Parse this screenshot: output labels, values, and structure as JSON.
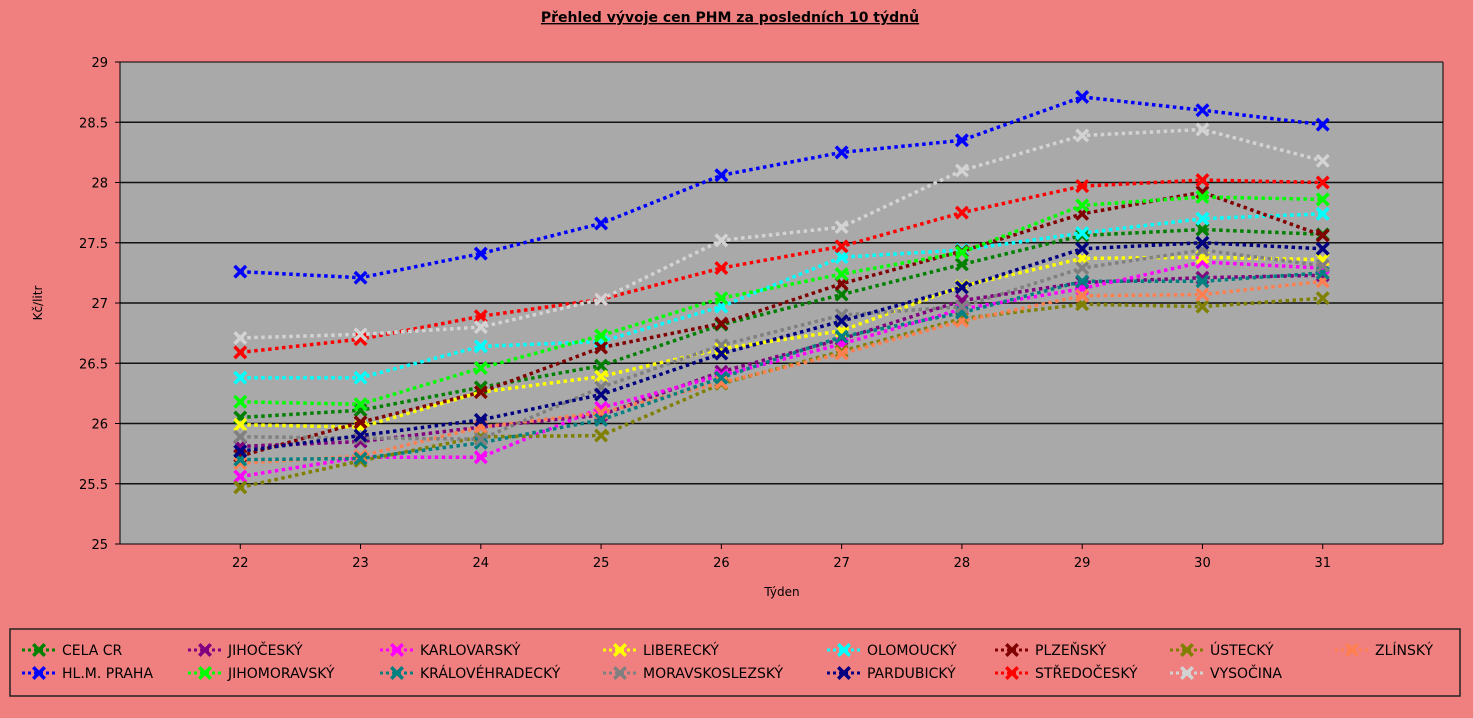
{
  "chart_data": {
    "type": "line",
    "title": "Přehled vývoje cen PHM za posledních 10 týdnů",
    "xlabel": "Týden",
    "ylabel": "Kč/litr",
    "ylim": [
      25,
      29
    ],
    "yticks": [
      "25",
      "25.5",
      "26",
      "26.5",
      "27",
      "27.5",
      "28",
      "28.5",
      "29"
    ],
    "x": [
      "22",
      "23",
      "24",
      "25",
      "26",
      "27",
      "28",
      "29",
      "30",
      "31"
    ],
    "grid": "horizontal",
    "legend_position": "bottom",
    "series": [
      {
        "name": "CELA CR",
        "color": "#008000",
        "values": [
          26.05,
          26.11,
          26.3,
          26.48,
          26.82,
          27.07,
          27.32,
          27.56,
          27.61,
          27.57
        ]
      },
      {
        "name": "JIHOČESKÝ",
        "color": "#800080",
        "values": [
          25.81,
          25.85,
          25.97,
          26.07,
          26.43,
          26.7,
          27.02,
          27.17,
          27.21,
          27.23
        ]
      },
      {
        "name": "KARLOVARSKÝ",
        "color": "#ff00ff",
        "values": [
          25.56,
          25.72,
          25.72,
          26.13,
          26.4,
          26.66,
          26.95,
          27.12,
          27.34,
          27.29
        ]
      },
      {
        "name": "LIBERECKÝ",
        "color": "#ffff00",
        "values": [
          25.99,
          25.97,
          26.26,
          26.39,
          26.62,
          26.77,
          27.14,
          27.37,
          27.38,
          27.36
        ]
      },
      {
        "name": "OLOMOUCKÝ",
        "color": "#00ffff",
        "values": [
          26.38,
          26.38,
          26.64,
          26.68,
          26.97,
          27.38,
          27.44,
          27.58,
          27.7,
          27.74
        ]
      },
      {
        "name": "PLZEŇSKÝ",
        "color": "#800000",
        "values": [
          25.73,
          26.01,
          26.26,
          26.63,
          26.83,
          27.16,
          27.43,
          27.74,
          27.92,
          27.56
        ]
      },
      {
        "name": "ÚSTECKÝ",
        "color": "#808000",
        "values": [
          25.47,
          25.69,
          25.89,
          25.9,
          26.33,
          26.6,
          26.87,
          26.99,
          26.97,
          27.04
        ]
      },
      {
        "name": "ZLÍNSKÝ",
        "color": "#ff7f50",
        "values": [
          25.67,
          25.73,
          25.97,
          26.09,
          26.34,
          26.58,
          26.85,
          27.06,
          27.07,
          27.18
        ]
      },
      {
        "name": "HL.M. PRAHA",
        "color": "#0000ff",
        "values": [
          27.26,
          27.21,
          27.41,
          27.66,
          28.06,
          28.25,
          28.35,
          28.71,
          28.6,
          28.48
        ]
      },
      {
        "name": "JIHOMORAVSKÝ",
        "color": "#00ff00",
        "values": [
          26.18,
          26.16,
          26.46,
          26.73,
          27.04,
          27.24,
          27.42,
          27.81,
          27.88,
          27.86
        ]
      },
      {
        "name": "KRÁLOVÉHRADECKÝ",
        "color": "#008080",
        "values": [
          25.7,
          25.71,
          25.84,
          26.03,
          26.38,
          26.72,
          26.92,
          27.18,
          27.18,
          27.25
        ]
      },
      {
        "name": "MORAVSKOSLEZSKÝ",
        "color": "#808080",
        "values": [
          25.89,
          25.88,
          25.87,
          26.3,
          26.65,
          26.9,
          26.97,
          27.29,
          27.44,
          27.31
        ]
      },
      {
        "name": "PARDUBICKÝ",
        "color": "#000080",
        "values": [
          25.77,
          25.9,
          26.03,
          26.24,
          26.58,
          26.85,
          27.13,
          27.45,
          27.5,
          27.45
        ]
      },
      {
        "name": "STŘEDOČESKÝ",
        "color": "#ff0000",
        "values": [
          26.59,
          26.7,
          26.89,
          27.03,
          27.29,
          27.47,
          27.75,
          27.97,
          28.02,
          28.0
        ]
      },
      {
        "name": "VYSOČINA",
        "color": "#d3d3d3",
        "values": [
          26.71,
          26.74,
          26.8,
          27.03,
          27.52,
          27.63,
          28.1,
          28.39,
          28.44,
          28.18
        ]
      }
    ]
  }
}
